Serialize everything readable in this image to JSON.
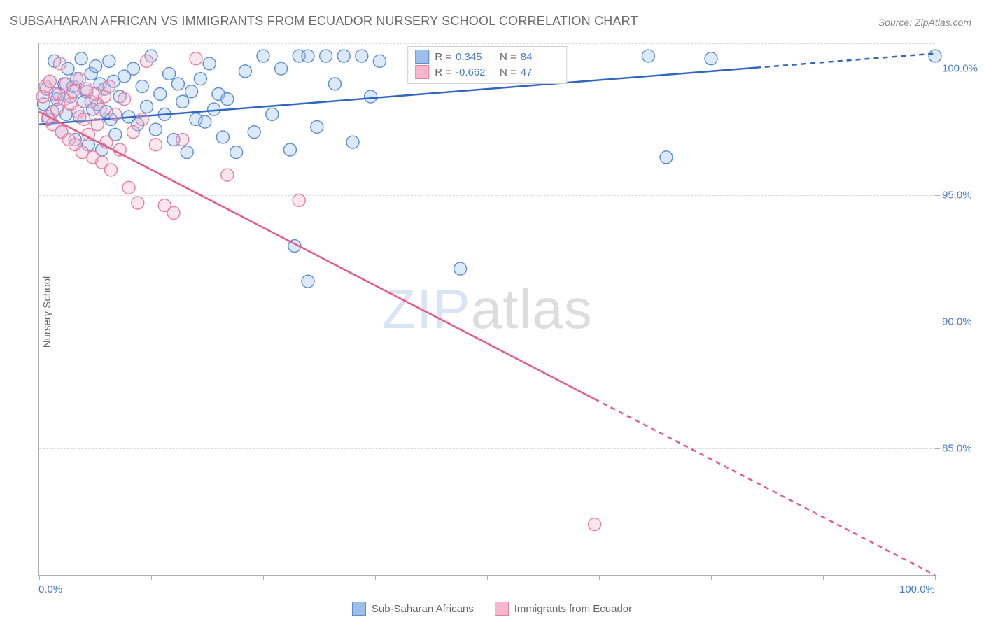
{
  "title": "SUBSAHARAN AFRICAN VS IMMIGRANTS FROM ECUADOR NURSERY SCHOOL CORRELATION CHART",
  "source": "Source: ZipAtlas.com",
  "watermark": {
    "zip": "ZIP",
    "atlas": "atlas"
  },
  "chart": {
    "type": "scatter",
    "ylabel": "Nursery School",
    "xlim": [
      0,
      100
    ],
    "ylim": [
      80,
      101
    ],
    "x_axis_labels": {
      "min": "0.0%",
      "max": "100.0%"
    },
    "x_ticks": [
      0,
      12.5,
      25,
      37.5,
      50,
      62.5,
      75,
      87.5,
      100
    ],
    "y_ticks": [
      {
        "v": 85,
        "label": "85.0%"
      },
      {
        "v": 90,
        "label": "90.0%"
      },
      {
        "v": 95,
        "label": "95.0%"
      },
      {
        "v": 100,
        "label": "100.0%"
      }
    ],
    "grid_y": [
      85,
      90,
      95,
      100,
      101
    ],
    "background_color": "#ffffff",
    "grid_color": "#d9d9d9",
    "marker_radius": 9,
    "marker_stroke_width": 1.4,
    "fill_opacity": 0.35,
    "line_width": 2.5,
    "series": [
      {
        "id": "ssa",
        "name": "Sub-Saharan Africans",
        "color_fill": "#9cc0ea",
        "color_stroke": "#5a8dd6",
        "line_color": "#2f66c4",
        "R_label": "R =",
        "R": "0.345",
        "N_label": "N =",
        "N": "84",
        "trend": {
          "x1": 0,
          "y1": 97.8,
          "x2": 100,
          "y2": 100.6,
          "solid_until_x": 80
        },
        "points": [
          [
            0.5,
            98.6
          ],
          [
            0.8,
            99.2
          ],
          [
            1.0,
            98.0
          ],
          [
            1.2,
            99.5
          ],
          [
            1.5,
            98.3
          ],
          [
            1.7,
            100.3
          ],
          [
            2.0,
            98.8
          ],
          [
            2.2,
            99.0
          ],
          [
            2.5,
            97.5
          ],
          [
            2.8,
            99.4
          ],
          [
            3.0,
            98.2
          ],
          [
            3.2,
            100.0
          ],
          [
            3.5,
            98.9
          ],
          [
            3.8,
            99.3
          ],
          [
            4.0,
            97.2
          ],
          [
            4.2,
            99.6
          ],
          [
            4.5,
            98.1
          ],
          [
            4.7,
            100.4
          ],
          [
            5.0,
            98.7
          ],
          [
            5.3,
            99.1
          ],
          [
            5.5,
            97.0
          ],
          [
            5.8,
            99.8
          ],
          [
            6.0,
            98.4
          ],
          [
            6.3,
            100.1
          ],
          [
            6.5,
            98.6
          ],
          [
            6.8,
            99.4
          ],
          [
            7.0,
            96.8
          ],
          [
            7.3,
            99.2
          ],
          [
            7.5,
            98.3
          ],
          [
            7.8,
            100.3
          ],
          [
            8.0,
            98.0
          ],
          [
            8.3,
            99.5
          ],
          [
            8.5,
            97.4
          ],
          [
            9.0,
            98.9
          ],
          [
            9.5,
            99.7
          ],
          [
            10.0,
            98.1
          ],
          [
            10.5,
            100.0
          ],
          [
            11.0,
            97.8
          ],
          [
            11.5,
            99.3
          ],
          [
            12.0,
            98.5
          ],
          [
            12.5,
            100.5
          ],
          [
            13.0,
            97.6
          ],
          [
            13.5,
            99.0
          ],
          [
            14.0,
            98.2
          ],
          [
            14.5,
            99.8
          ],
          [
            15.0,
            97.2
          ],
          [
            15.5,
            99.4
          ],
          [
            16.0,
            98.7
          ],
          [
            16.5,
            96.7
          ],
          [
            17.0,
            99.1
          ],
          [
            17.5,
            98.0
          ],
          [
            18.0,
            99.6
          ],
          [
            18.5,
            97.9
          ],
          [
            19.0,
            100.2
          ],
          [
            19.5,
            98.4
          ],
          [
            20.0,
            99.0
          ],
          [
            20.5,
            97.3
          ],
          [
            21.0,
            98.8
          ],
          [
            22.0,
            96.7
          ],
          [
            23.0,
            99.9
          ],
          [
            24.0,
            97.5
          ],
          [
            25.0,
            100.5
          ],
          [
            26.0,
            98.2
          ],
          [
            27.0,
            100.0
          ],
          [
            28.0,
            96.8
          ],
          [
            29.0,
            100.5
          ],
          [
            30.0,
            100.5
          ],
          [
            31.0,
            97.7
          ],
          [
            32.0,
            100.5
          ],
          [
            33.0,
            99.4
          ],
          [
            34.0,
            100.5
          ],
          [
            35.0,
            97.1
          ],
          [
            36.0,
            100.5
          ],
          [
            37.0,
            98.9
          ],
          [
            38.0,
            100.3
          ],
          [
            30.0,
            91.6
          ],
          [
            28.5,
            93.0
          ],
          [
            47.0,
            92.1
          ],
          [
            50.0,
            100.5
          ],
          [
            54.0,
            100.5
          ],
          [
            68.0,
            100.5
          ],
          [
            70.0,
            96.5
          ],
          [
            75.0,
            100.4
          ],
          [
            100.0,
            100.5
          ]
        ]
      },
      {
        "id": "ecu",
        "name": "Immigrants from Ecuador",
        "color_fill": "#f6b7ca",
        "color_stroke": "#e77fa3",
        "line_color": "#e65a8a",
        "R_label": "R =",
        "R": "-0.662",
        "N_label": "N =",
        "N": "47",
        "trend": {
          "x1": 0,
          "y1": 98.3,
          "x2": 100,
          "y2": 80.0,
          "solid_until_x": 62
        },
        "points": [
          [
            0.4,
            98.9
          ],
          [
            0.7,
            99.3
          ],
          [
            1.0,
            98.1
          ],
          [
            1.2,
            99.5
          ],
          [
            1.5,
            97.8
          ],
          [
            1.8,
            99.0
          ],
          [
            2.0,
            98.4
          ],
          [
            2.3,
            100.2
          ],
          [
            2.5,
            97.5
          ],
          [
            2.8,
            98.8
          ],
          [
            3.0,
            99.4
          ],
          [
            3.3,
            97.2
          ],
          [
            3.5,
            98.6
          ],
          [
            3.8,
            99.1
          ],
          [
            4.0,
            97.0
          ],
          [
            4.3,
            98.3
          ],
          [
            4.5,
            99.6
          ],
          [
            4.8,
            96.7
          ],
          [
            5.0,
            98.0
          ],
          [
            5.3,
            99.2
          ],
          [
            5.5,
            97.4
          ],
          [
            5.8,
            98.7
          ],
          [
            6.0,
            96.5
          ],
          [
            6.3,
            99.0
          ],
          [
            6.5,
            97.8
          ],
          [
            6.8,
            98.4
          ],
          [
            7.0,
            96.3
          ],
          [
            7.3,
            98.9
          ],
          [
            7.5,
            97.1
          ],
          [
            7.8,
            99.3
          ],
          [
            8.0,
            96.0
          ],
          [
            8.5,
            98.2
          ],
          [
            9.0,
            96.8
          ],
          [
            9.5,
            98.8
          ],
          [
            10.0,
            95.3
          ],
          [
            10.5,
            97.5
          ],
          [
            11.0,
            94.7
          ],
          [
            11.5,
            98.0
          ],
          [
            12.0,
            100.3
          ],
          [
            13.0,
            97.0
          ],
          [
            14.0,
            94.6
          ],
          [
            15.0,
            94.3
          ],
          [
            16.0,
            97.2
          ],
          [
            17.5,
            100.4
          ],
          [
            21.0,
            95.8
          ],
          [
            29.0,
            94.8
          ],
          [
            62.0,
            82.0
          ]
        ]
      }
    ]
  },
  "legend_bottom": [
    {
      "label": "Sub-Saharan Africans",
      "fill": "#9cc0ea",
      "stroke": "#5a8dd6"
    },
    {
      "label": "Immigrants from Ecuador",
      "fill": "#f6b7ca",
      "stroke": "#e77fa3"
    }
  ]
}
